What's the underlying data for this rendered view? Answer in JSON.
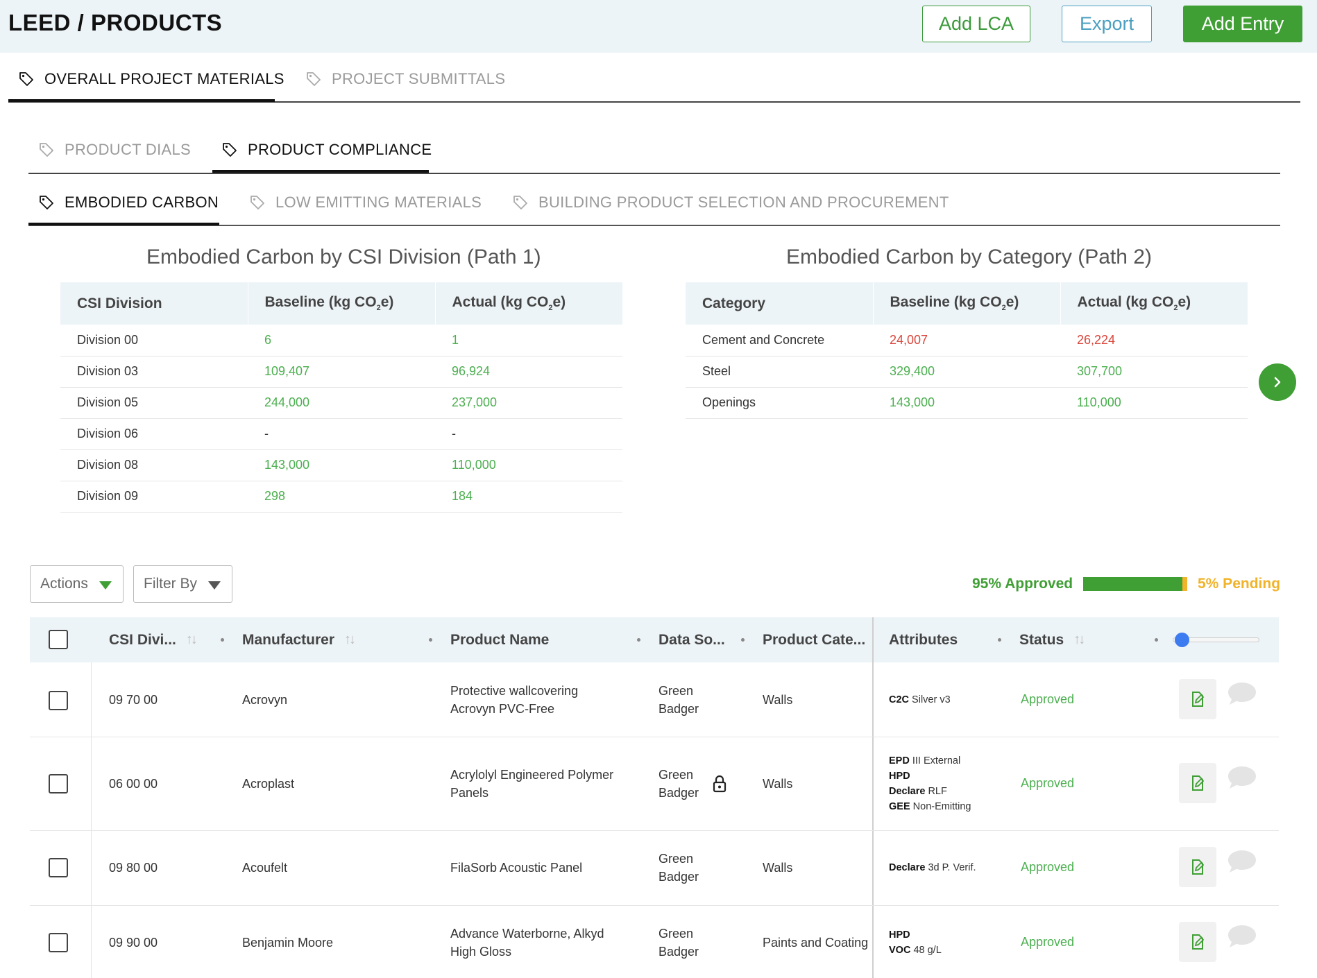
{
  "header": {
    "title": "LEED / PRODUCTS",
    "add_lca": "Add LCA",
    "export": "Export",
    "add_entry": "Add Entry"
  },
  "tabs_level1": [
    {
      "label": "OVERALL PROJECT MATERIALS",
      "active": true
    },
    {
      "label": "PROJECT SUBMITTALS",
      "active": false
    }
  ],
  "tabs_level2": [
    {
      "label": "PRODUCT DIALS",
      "active": false
    },
    {
      "label": "PRODUCT COMPLIANCE",
      "active": true
    }
  ],
  "tabs_level3": [
    {
      "label": "EMBODIED CARBON",
      "active": true
    },
    {
      "label": "LOW EMITTING MATERIALS",
      "active": false
    },
    {
      "label": "BUILDING PRODUCT SELECTION AND PROCUREMENT",
      "active": false
    }
  ],
  "csi_summary": {
    "title": "Embodied Carbon by CSI Division (Path 1)",
    "headers": [
      "CSI Division",
      "Baseline (kg CO",
      "e)",
      "Actual (kg CO",
      "e)"
    ],
    "col1": "CSI Division",
    "col2_pre": "Baseline (kg CO",
    "col2_sub": "2",
    "col2_post": "e)",
    "col3_pre": "Actual (kg CO",
    "col3_sub": "2",
    "col3_post": "e)",
    "rows": [
      {
        "division": "Division 00",
        "baseline": "6",
        "actual": "1"
      },
      {
        "division": "Division 03",
        "baseline": "109,407",
        "actual": "96,924"
      },
      {
        "division": "Division 05",
        "baseline": "244,000",
        "actual": "237,000"
      },
      {
        "division": "Division 06",
        "baseline": "-",
        "actual": "-"
      },
      {
        "division": "Division 08",
        "baseline": "143,000",
        "actual": "110,000"
      },
      {
        "division": "Division 09",
        "baseline": "298",
        "actual": "184"
      }
    ]
  },
  "category_summary": {
    "title": "Embodied Carbon by Category (Path 2)",
    "col1": "Category",
    "col2_pre": "Baseline (kg CO",
    "col2_sub": "2",
    "col2_post": "e)",
    "col3_pre": "Actual (kg CO",
    "col3_sub": "2",
    "col3_post": "e)",
    "rows": [
      {
        "category": "Cement and Concrete",
        "baseline": "24,007",
        "actual": "26,224"
      },
      {
        "category": "Steel",
        "baseline": "329,400",
        "actual": "307,700"
      },
      {
        "category": "Openings",
        "baseline": "143,000",
        "actual": "110,000"
      }
    ]
  },
  "controls": {
    "actions": "Actions",
    "filter_by": "Filter By",
    "approved_label": "95% Approved",
    "pending_label": "5% Pending",
    "approved_fraction": 0.95
  },
  "table": {
    "headers": {
      "csi": "CSI Divi...",
      "manufacturer": "Manufacturer",
      "product_name": "Product Name",
      "data_source": "Data So...",
      "product_category": "Product Cate...",
      "attributes": "Attributes",
      "status": "Status"
    },
    "rows": [
      {
        "csi": "09 70 00",
        "manufacturer": "Acrovyn",
        "product_name": [
          "Protective wallcovering",
          "Acrovyn PVC-Free"
        ],
        "data_source": [
          "Green",
          "Badger"
        ],
        "locked": false,
        "category": "Walls",
        "attributes": [
          {
            "key": "C2C",
            "val": "Silver v3"
          }
        ],
        "status": "Approved"
      },
      {
        "csi": "06 00 00",
        "manufacturer": "Acroplast",
        "product_name": [
          "Acrylolyl Engineered Polymer",
          "Panels"
        ],
        "data_source": [
          "Green",
          "Badger"
        ],
        "locked": true,
        "category": "Walls",
        "attributes": [
          {
            "key": "EPD",
            "val": "III External"
          },
          {
            "key": "HPD",
            "val": ""
          },
          {
            "key": "Declare",
            "val": "RLF"
          },
          {
            "key": "GEE",
            "val": "Non-Emitting"
          }
        ],
        "status": "Approved"
      },
      {
        "csi": "09 80 00",
        "manufacturer": "Acoufelt",
        "product_name": [
          "FilaSorb Acoustic Panel"
        ],
        "data_source": [
          "Green",
          "Badger"
        ],
        "locked": false,
        "category": "Walls",
        "attributes": [
          {
            "key": "Declare",
            "val": "3d P. Verif."
          }
        ],
        "status": "Approved"
      },
      {
        "csi": "09 90 00",
        "manufacturer": "Benjamin Moore",
        "product_name": [
          "Advance Waterborne, Alkyd",
          "High Gloss"
        ],
        "data_source": [
          "Green",
          "Badger"
        ],
        "locked": false,
        "category": "Paints and Coating",
        "attributes": [
          {
            "key": "HPD",
            "val": ""
          },
          {
            "key": "VOC",
            "val": "48 g/L"
          }
        ],
        "status": "Approved"
      }
    ]
  },
  "icons": {
    "tab": "tag-icon",
    "next": "chevron-right-icon",
    "edit": "edit-icon",
    "comment": "comment-icon",
    "lock": "lock-icon",
    "sort": "sort-icon"
  },
  "colors": {
    "green": "#3f9f34",
    "red": "#d9453b",
    "pending": "#f0b32a",
    "export_blue": "#4a9fc0",
    "header_bg": "#edf4f7"
  }
}
